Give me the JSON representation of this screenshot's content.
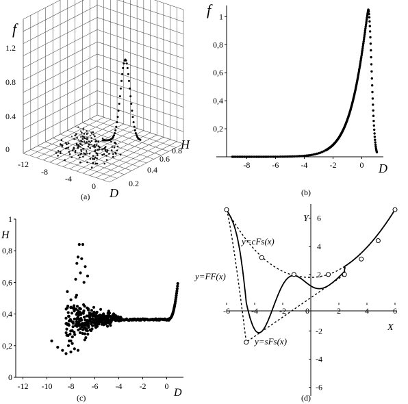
{
  "chart_data": [
    {
      "panel": "a",
      "type": "scatter",
      "caption": "(a)",
      "zlabel": "f",
      "xlabel": "D",
      "ylabel": "H",
      "z_ticks": [
        "1.2",
        "0.8",
        "0.4",
        "0"
      ],
      "x_ticks": [
        "-12",
        "-8",
        "-4",
        "0"
      ],
      "y_ticks": [
        "0.2",
        "0.4",
        "0.6",
        "0.8"
      ]
    },
    {
      "panel": "b",
      "type": "scatter",
      "caption": "(b)",
      "xlabel": "D",
      "ylabel": "f",
      "xlim": [
        -9.4,
        1.5
      ],
      "ylim": [
        0,
        1.08
      ],
      "x_ticks": [
        -8,
        -6,
        -4,
        -2,
        0
      ],
      "y_ticks": [
        0.2,
        0.4,
        0.6,
        0.8,
        1
      ],
      "y_tick_labels": [
        "0,2",
        "0,4",
        "0,6",
        "0,8",
        "1"
      ],
      "x_tick_labels": [
        "-8",
        "-6",
        "-4",
        "-2",
        "0"
      ]
    },
    {
      "panel": "c",
      "type": "scatter",
      "caption": "(c)",
      "xlabel": "D",
      "ylabel": "H",
      "xlim": [
        -12.6,
        1.4
      ],
      "ylim": [
        0,
        1
      ],
      "x_ticks": [
        -12,
        -10,
        -8,
        -6,
        -4,
        -2,
        0
      ],
      "x_tick_labels": [
        "-12",
        "-10",
        "-8",
        "-6",
        "-4",
        "-2",
        "0"
      ],
      "y_ticks": [
        0,
        0.2,
        0.4,
        0.6,
        0.8,
        1
      ],
      "y_tick_labels": [
        "0",
        "0,2",
        "0,4",
        "0,6",
        "0,8",
        "1"
      ]
    },
    {
      "panel": "d",
      "type": "line",
      "caption": "(d)",
      "xlabel": "X",
      "ylabel": "Y",
      "xlim": [
        -6,
        6
      ],
      "ylim": [
        -6.6,
        7
      ],
      "x_ticks": [
        -6,
        -4,
        -2,
        0,
        2,
        4,
        6
      ],
      "x_tick_labels": [
        "-6",
        "-4",
        "-2",
        "0",
        "2",
        "4",
        "6"
      ],
      "y_ticks": [
        -6,
        -4,
        -2,
        2,
        4,
        6
      ],
      "y_tick_labels": [
        "-6",
        "-4",
        "-2",
        "2",
        "4",
        "6"
      ],
      "series": [
        {
          "name": "y=FF(x)"
        },
        {
          "name": "y=cFs(x)"
        },
        {
          "name": "y=sFs(x)"
        }
      ],
      "markers": {
        "x": [
          -6,
          -3.5,
          -1.2,
          1.25,
          2.4,
          3.6,
          4.8,
          6
        ],
        "y": [
          6.6,
          3.2,
          2.0,
          2.0,
          2.0,
          3.1,
          4.4,
          6.6
        ]
      },
      "lower_marker": {
        "x": -4.6,
        "y": -2.8
      }
    }
  ]
}
